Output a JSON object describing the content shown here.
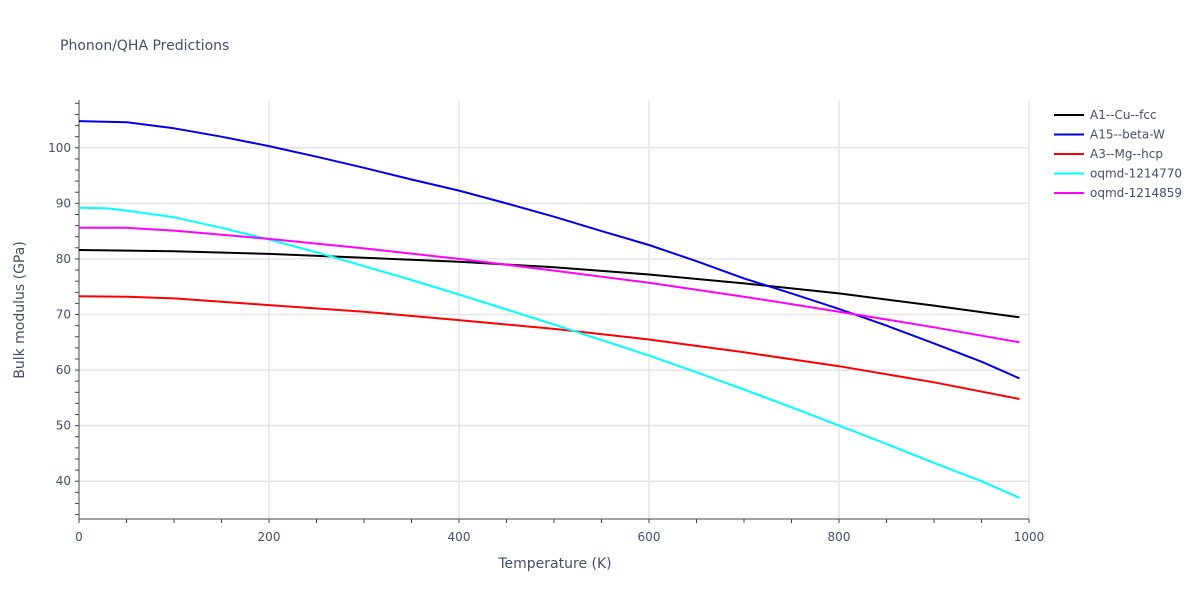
{
  "chart_data": {
    "type": "line",
    "title": "Phonon/QHA Predictions",
    "xlabel": "Temperature (K)",
    "ylabel": "Bulk modulus (GPa)",
    "xlim": [
      0,
      1000
    ],
    "ylim": [
      33.2,
      108.6
    ],
    "xticks": [
      0,
      200,
      400,
      600,
      800,
      1000
    ],
    "yticks": [
      40,
      50,
      60,
      70,
      80,
      90,
      100
    ],
    "grid": true,
    "legend_position": "right",
    "series": [
      {
        "name": "A1--Cu--fcc",
        "color": "#000000",
        "x": [
          0,
          100,
          200,
          300,
          400,
          500,
          600,
          700,
          800,
          900,
          990
        ],
        "y": [
          81.6,
          81.4,
          80.9,
          80.2,
          79.5,
          78.5,
          77.2,
          75.6,
          73.8,
          71.6,
          69.5
        ]
      },
      {
        "name": "A15--beta-W",
        "color": "#0000ee",
        "x": [
          0,
          50,
          100,
          150,
          200,
          250,
          300,
          350,
          400,
          450,
          500,
          550,
          600,
          650,
          700,
          750,
          800,
          850,
          900,
          950,
          990
        ],
        "y": [
          104.8,
          104.6,
          103.5,
          102,
          100.3,
          98.4,
          96.4,
          94.3,
          92.3,
          90,
          87.6,
          85,
          82.5,
          79.6,
          76.5,
          73.8,
          71,
          68,
          64.8,
          61.5,
          58.5
        ]
      },
      {
        "name": "A3--Mg--hcp",
        "color": "#ff0000",
        "x": [
          0,
          50,
          100,
          200,
          300,
          400,
          500,
          600,
          700,
          800,
          900,
          990
        ],
        "y": [
          73.3,
          73.2,
          72.9,
          71.7,
          70.5,
          69,
          67.4,
          65.5,
          63.2,
          60.7,
          57.8,
          54.8
        ]
      },
      {
        "name": "oqmd-1214770",
        "color": "#00ffff",
        "x": [
          0,
          30,
          50,
          100,
          150,
          200,
          250,
          300,
          350,
          400,
          450,
          500,
          550,
          600,
          650,
          700,
          750,
          800,
          850,
          900,
          950,
          990
        ],
        "y": [
          89.2,
          89.1,
          88.7,
          87.5,
          85.6,
          83.5,
          81.2,
          78.7,
          76.2,
          73.6,
          70.9,
          68.2,
          65.4,
          62.6,
          59.6,
          56.5,
          53.3,
          50,
          46.7,
          43.3,
          40,
          37
        ]
      },
      {
        "name": "oqmd-1214859",
        "color": "#ff00ff",
        "x": [
          0,
          50,
          100,
          200,
          300,
          400,
          500,
          600,
          700,
          800,
          900,
          990
        ],
        "y": [
          85.6,
          85.6,
          85.1,
          83.6,
          81.9,
          80,
          77.9,
          75.7,
          73.2,
          70.5,
          67.7,
          65
        ]
      }
    ]
  }
}
